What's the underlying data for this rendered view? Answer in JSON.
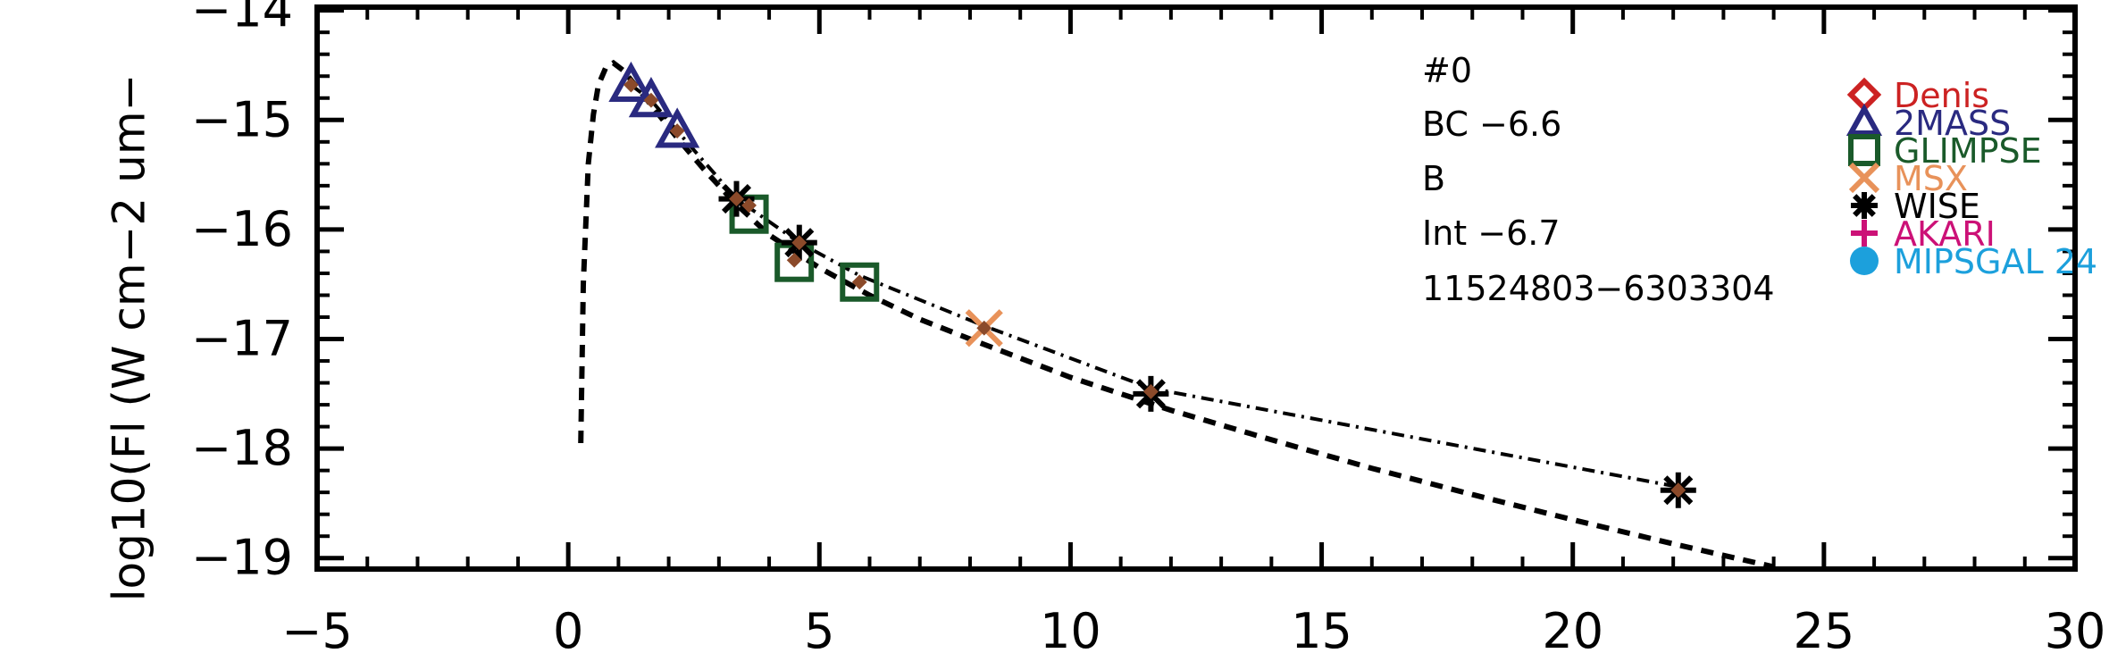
{
  "chart_data": {
    "type": "scatter",
    "ylabel": "log10(Fl (W cm−2 um−",
    "xlabel": "",
    "xlim": [
      -5,
      30
    ],
    "ylim": [
      -19.1,
      -13.97
    ],
    "x_ticks": [
      -5,
      0,
      5,
      10,
      15,
      20,
      25,
      30
    ],
    "x_tick_labels": [
      "−5",
      "0",
      "5",
      "10",
      "15",
      "20",
      "25",
      "30"
    ],
    "y_ticks": [
      -14,
      -15,
      -16,
      -17,
      -18,
      -19
    ],
    "y_tick_labels": [
      "−14",
      "−15",
      "−16",
      "−17",
      "−18",
      "−19"
    ],
    "grid": false,
    "annotations": [
      "#0",
      "BC −6.6",
      "B",
      "Int −6.7",
      "11524803−6303304"
    ],
    "legend": {
      "position": "top-right",
      "entries": [
        {
          "label": "Denis",
          "color": "#cc2222",
          "marker": "diamond"
        },
        {
          "label": "2MASS",
          "color": "#2a2a80",
          "marker": "triangle"
        },
        {
          "label": "GLIMPSE",
          "color": "#1a5a2a",
          "marker": "square"
        },
        {
          "label": "MSX",
          "color": "#e8925a",
          "marker": "x"
        },
        {
          "label": "WISE",
          "color": "#000000",
          "marker": "asterisk"
        },
        {
          "label": "AKARI",
          "color": "#cc1177",
          "marker": "plus"
        },
        {
          "label": "MIPSGAL 24",
          "color": "#1ca0dc",
          "marker": "circle"
        }
      ]
    },
    "series": [
      {
        "name": "2MASS",
        "marker": "triangle",
        "color": "#2a2a80",
        "x": [
          1.25,
          1.65,
          2.17
        ],
        "y": [
          -14.68,
          -14.82,
          -15.1
        ]
      },
      {
        "name": "GLIMPSE",
        "marker": "square",
        "color": "#1a5a2a",
        "x": [
          3.6,
          4.5,
          5.8
        ],
        "y": [
          -15.86,
          -16.3,
          -16.48
        ]
      },
      {
        "name": "MSX",
        "marker": "x",
        "color": "#e8925a",
        "x": [
          8.28
        ],
        "y": [
          -16.9
        ]
      },
      {
        "name": "WISE",
        "marker": "asterisk",
        "color": "#000000",
        "x": [
          3.35,
          4.6,
          11.6,
          22.1
        ],
        "y": [
          -15.72,
          -16.12,
          -17.5,
          -18.38
        ]
      }
    ],
    "model_points": {
      "color": "#8b4a2a",
      "x": [
        1.25,
        1.65,
        2.17,
        3.35,
        3.6,
        4.5,
        4.6,
        5.8,
        8.28,
        11.6,
        22.1
      ],
      "y": [
        -14.68,
        -14.82,
        -15.1,
        -15.72,
        -15.78,
        -16.28,
        -16.12,
        -16.48,
        -16.9,
        -17.48,
        -18.38
      ]
    },
    "dashed_curve": {
      "style": "dashed",
      "x": [
        0.25,
        0.3,
        0.4,
        0.5,
        0.6,
        0.75,
        0.9,
        1.1,
        1.4,
        1.8,
        2.2,
        2.7,
        3.3,
        4.0,
        5.0,
        6.0,
        7.0,
        8.0,
        10.0,
        12.0,
        14.0,
        16.0,
        18.0,
        20.0,
        22.0,
        24.0
      ],
      "y": [
        -17.95,
        -16.5,
        -15.4,
        -14.95,
        -14.68,
        -14.52,
        -14.48,
        -14.55,
        -14.72,
        -14.95,
        -15.18,
        -15.45,
        -15.75,
        -16.05,
        -16.35,
        -16.6,
        -16.82,
        -17.0,
        -17.35,
        -17.65,
        -17.92,
        -18.18,
        -18.42,
        -18.65,
        -18.87,
        -19.08
      ]
    },
    "dashdot_curve": {
      "style": "dashdot",
      "x": [
        1.25,
        1.65,
        2.17,
        3.35,
        4.6,
        5.8,
        8.28,
        11.6,
        22.1
      ],
      "y": [
        -14.68,
        -14.82,
        -15.1,
        -15.72,
        -16.12,
        -16.42,
        -16.88,
        -17.45,
        -18.35
      ]
    }
  }
}
